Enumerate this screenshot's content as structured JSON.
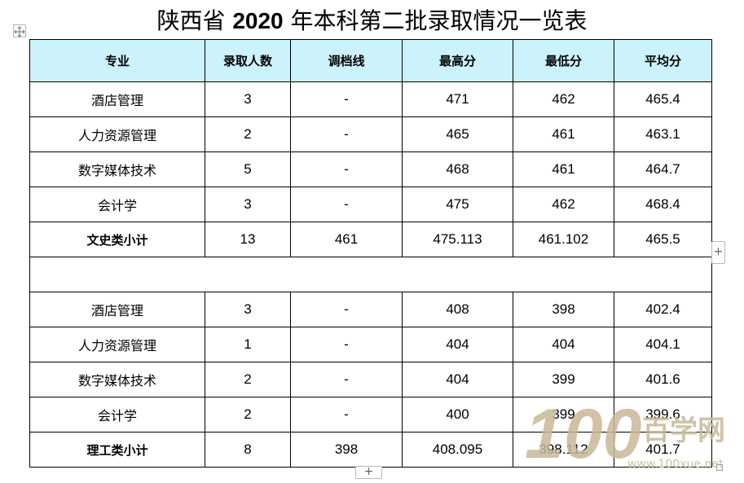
{
  "title": {
    "prefix": "陕西省 ",
    "year": "2020",
    "suffix": " 年本科第二批录取情况一览表"
  },
  "table": {
    "headers": [
      "专业",
      "录取人数",
      "调档线",
      "最高分",
      "最低分",
      "平均分"
    ],
    "liberal_arts": {
      "rows": [
        [
          "酒店管理",
          "3",
          "-",
          "471",
          "462",
          "465.4"
        ],
        [
          "人力资源管理",
          "2",
          "-",
          "465",
          "461",
          "463.1"
        ],
        [
          "数字媒体技术",
          "5",
          "-",
          "468",
          "461",
          "464.7"
        ],
        [
          "会计学",
          "3",
          "-",
          "475",
          "462",
          "468.4"
        ]
      ],
      "subtotal": [
        "文史类小计",
        "13",
        "461",
        "475.113",
        "461.102",
        "465.5"
      ]
    },
    "science": {
      "rows": [
        [
          "酒店管理",
          "3",
          "-",
          "408",
          "398",
          "402.4"
        ],
        [
          "人力资源管理",
          "1",
          "-",
          "404",
          "404",
          "404.1"
        ],
        [
          "数字媒体技术",
          "2",
          "-",
          "404",
          "399",
          "401.6"
        ],
        [
          "会计学",
          "2",
          "-",
          "400",
          "399",
          "399.6"
        ]
      ],
      "subtotal": [
        "理工类小计",
        "8",
        "398",
        "408.095",
        "398.112",
        "401.7"
      ]
    }
  },
  "editor": {
    "add_row_symbol": "+",
    "add_column_symbol": "+"
  },
  "watermark": {
    "logo_number": "100",
    "brand": "百学网",
    "url": "www.100xue.net",
    "color": "#c8b796"
  },
  "icons": {
    "move_handle": "move-icon",
    "resize_handle": "resize-icon"
  }
}
